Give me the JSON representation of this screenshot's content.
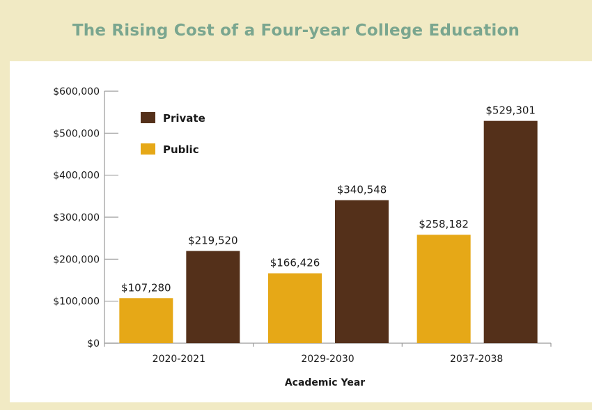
{
  "chart_data": {
    "type": "bar",
    "title": "The Rising Cost of a Four-year College Education",
    "xlabel": "Academic Year",
    "ylabel": "",
    "categories": [
      "2020-2021",
      "2029-2030",
      "2037-2038"
    ],
    "series": [
      {
        "name": "Public",
        "color": "#e6a817",
        "values": [
          107280,
          166426,
          258182
        ],
        "labels": [
          "$107,280",
          "$166,426",
          "$258,182"
        ]
      },
      {
        "name": "Private",
        "color": "#54301a",
        "values": [
          219520,
          340548,
          529301
        ],
        "labels": [
          "$219,520",
          "$340,548",
          "$529,301"
        ]
      }
    ],
    "ylim": [
      0,
      600000
    ],
    "yticks": [
      0,
      100000,
      200000,
      300000,
      400000,
      500000,
      600000
    ],
    "ytick_labels": [
      "$0",
      "$100,000",
      "$200,000",
      "$300,000",
      "$400,000",
      "$500,000",
      "$600,000"
    ],
    "legend": {
      "placement": "top-left",
      "order": [
        "Private",
        "Public"
      ]
    },
    "grid": false
  },
  "colors": {
    "frame_background": "#f1eac4",
    "title_color": "#7aa68f",
    "axis_color": "#9a9a9a"
  }
}
